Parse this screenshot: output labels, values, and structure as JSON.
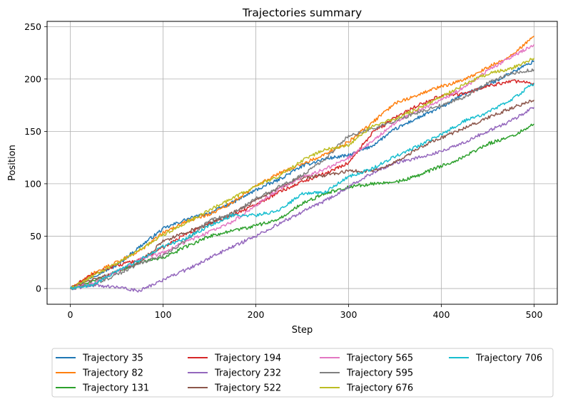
{
  "chart_data": {
    "type": "line",
    "title": "Trajectories summary",
    "xlabel": "Step",
    "ylabel": "Position",
    "xlim": [
      -25,
      525
    ],
    "ylim": [
      -15,
      255
    ],
    "xticks": [
      0,
      100,
      200,
      300,
      400,
      500
    ],
    "yticks": [
      0,
      50,
      100,
      150,
      200,
      250
    ],
    "grid": true,
    "legend_position": "bottom (below plot), 4 columns",
    "x": [
      0,
      25,
      50,
      75,
      100,
      125,
      150,
      175,
      200,
      225,
      250,
      275,
      300,
      325,
      350,
      375,
      400,
      425,
      450,
      475,
      500
    ],
    "series": [
      {
        "name": "Trajectory 35",
        "color": "#1f77b4",
        "values": [
          0,
          12,
          22,
          40,
          57,
          66,
          72,
          82,
          94,
          104,
          117,
          124,
          127,
          136,
          152,
          163,
          173,
          186,
          194,
          206,
          217
        ]
      },
      {
        "name": "Trajectory 82",
        "color": "#ff7f0e",
        "values": [
          0,
          15,
          25,
          36,
          53,
          64,
          71,
          82,
          98,
          110,
          119,
          128,
          140,
          158,
          177,
          185,
          193,
          199,
          211,
          222,
          241
        ]
      },
      {
        "name": "Trajectory 131",
        "color": "#2ca02c",
        "values": [
          0,
          7,
          16,
          25,
          29,
          40,
          50,
          55,
          60,
          66,
          81,
          91,
          97,
          100,
          101,
          108,
          117,
          126,
          138,
          145,
          157
        ]
      },
      {
        "name": "Trajectory 194",
        "color": "#d62728",
        "values": [
          0,
          14,
          22,
          27,
          39,
          52,
          62,
          70,
          80,
          92,
          102,
          110,
          120,
          148,
          163,
          175,
          184,
          186,
          193,
          198,
          196
        ]
      },
      {
        "name": "Trajectory 232",
        "color": "#9467bd",
        "values": [
          0,
          3,
          1,
          -2,
          8,
          18,
          29,
          40,
          50,
          62,
          73,
          84,
          97,
          110,
          120,
          125,
          131,
          140,
          150,
          160,
          173
        ]
      },
      {
        "name": "Trajectory 522",
        "color": "#8c564b",
        "values": [
          0,
          9,
          16,
          25,
          45,
          54,
          62,
          72,
          84,
          96,
          106,
          108,
          112,
          112,
          120,
          134,
          144,
          153,
          163,
          172,
          180
        ]
      },
      {
        "name": "Trajectory 565",
        "color": "#e377c2",
        "values": [
          0,
          5,
          16,
          28,
          34,
          45,
          54,
          64,
          79,
          95,
          106,
          114,
          125,
          140,
          158,
          170,
          180,
          192,
          208,
          221,
          233
        ]
      },
      {
        "name": "Trajectory 595",
        "color": "#7f7f7f",
        "values": [
          0,
          4,
          13,
          24,
          31,
          46,
          65,
          71,
          86,
          97,
          108,
          124,
          146,
          152,
          160,
          168,
          175,
          183,
          196,
          205,
          209
        ]
      },
      {
        "name": "Trajectory 676",
        "color": "#bcbd22",
        "values": [
          0,
          12,
          24,
          37,
          51,
          63,
          75,
          86,
          98,
          107,
          122,
          133,
          137,
          155,
          162,
          172,
          183,
          195,
          205,
          210,
          220
        ]
      },
      {
        "name": "Trajectory 706",
        "color": "#17becf",
        "values": [
          0,
          4,
          17,
          27,
          40,
          48,
          60,
          70,
          70,
          74,
          91,
          92,
          107,
          114,
          126,
          136,
          147,
          160,
          168,
          180,
          196
        ]
      }
    ]
  }
}
